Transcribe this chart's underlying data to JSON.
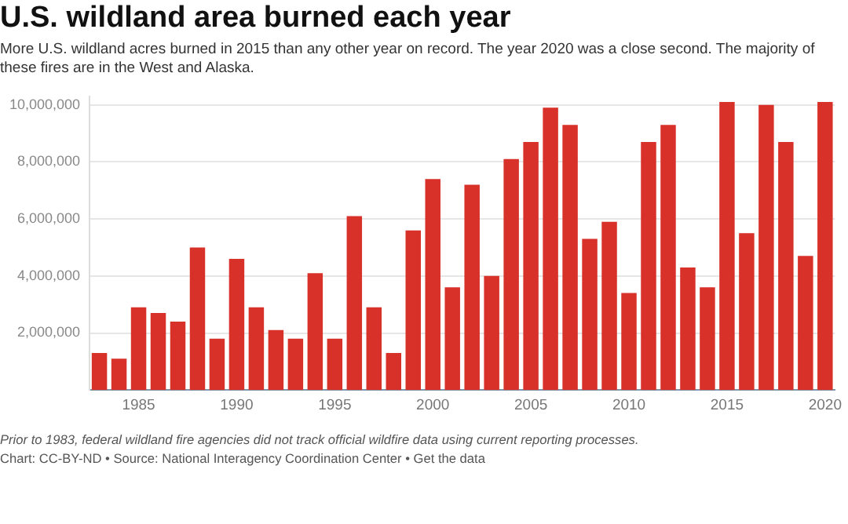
{
  "chart_data": {
    "type": "bar",
    "title": "U.S. wildland area burned each year",
    "subtitle": "More U.S. wildland acres burned in 2015 than any other year on record. The year 2020 was a close second. The majority of these fires are in the West and Alaska.",
    "categories": [
      null,
      null,
      "1985",
      null,
      null,
      null,
      null,
      "1990",
      null,
      null,
      null,
      null,
      "1995",
      null,
      null,
      null,
      null,
      "2000",
      null,
      null,
      null,
      null,
      "2005",
      null,
      null,
      null,
      null,
      "2010",
      null,
      null,
      null,
      null,
      "2015",
      null,
      null,
      null,
      null,
      "2020"
    ],
    "values": [
      1300000,
      1100000,
      2900000,
      2700000,
      2400000,
      5000000,
      1800000,
      4600000,
      2900000,
      2100000,
      1800000,
      4100000,
      1800000,
      6100000,
      2900000,
      1300000,
      5600000,
      7400000,
      3600000,
      7200000,
      4000000,
      8100000,
      8700000,
      9900000,
      9300000,
      5300000,
      5900000,
      3400000,
      8700000,
      9300000,
      4300000,
      3600000,
      10100000,
      5500000,
      10000000,
      8700000,
      4700000,
      10100000
    ],
    "color": "#d8312a",
    "ylim": [
      0,
      10300000
    ],
    "yticks": [
      {
        "value": 2000000,
        "label": "2,000,000"
      },
      {
        "value": 4000000,
        "label": "4,000,000"
      },
      {
        "value": 6000000,
        "label": "6,000,000"
      },
      {
        "value": 8000000,
        "label": "8,000,000"
      },
      {
        "value": 10000000,
        "label": "10,000,000"
      }
    ],
    "grid": "y",
    "annotations": [
      "Prior to 1983, federal wildland fire agencies did not track official wildfire data using current reporting processes.",
      "Chart: CC-BY-ND • Source: National Interagency Coordination Center • Get the data"
    ]
  }
}
